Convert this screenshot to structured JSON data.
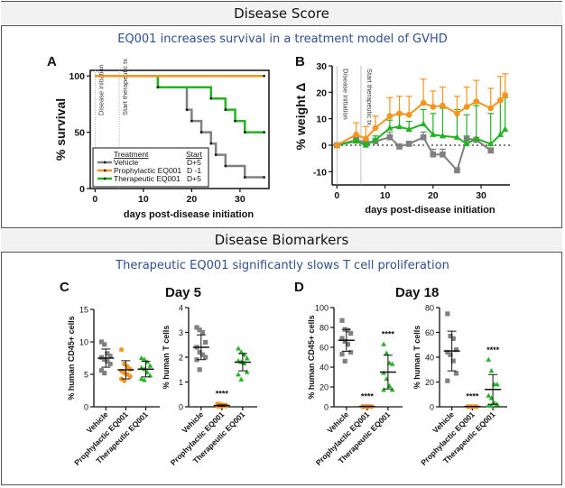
{
  "sections": {
    "score": {
      "title": "Disease Score",
      "subtitle": "EQ001 increases survival in a treatment model of GVHD"
    },
    "biomarkers": {
      "title": "Disease Biomarkers",
      "subtitle": "Therapeutic EQ001 significantly slows T cell proliferation"
    }
  },
  "colors": {
    "vehicle": "#808080",
    "prophylactic": "#f7941d",
    "therapeutic": "#22b322",
    "subtitle": "#2f4f8f"
  },
  "chart_data": [
    {
      "id": "A",
      "panel_label": "A",
      "type": "line",
      "subtype": "kaplan-meier",
      "xlabel": "days post-disease initiation",
      "ylabel": "% survival",
      "xlim": [
        -1,
        36
      ],
      "ylim": [
        0,
        105
      ],
      "xticks": [
        0,
        10,
        20,
        30
      ],
      "yticks": [
        0,
        50,
        100
      ],
      "annotations": [
        "Disease initiation",
        "Start therapeutic tx"
      ],
      "annotation_x": [
        0,
        5
      ],
      "legend": {
        "placement": "bottom-left",
        "header_treatment": "Treatment",
        "header_start": "Start"
      },
      "series": [
        {
          "name": "Vehicle",
          "start": "D+5",
          "key": "vehicle",
          "steps": [
            [
              0,
              100
            ],
            [
              13,
              90
            ],
            [
              19,
              70
            ],
            [
              20,
              60
            ],
            [
              22,
              50
            ],
            [
              24,
              40
            ],
            [
              25,
              30
            ],
            [
              27,
              20
            ],
            [
              31,
              10
            ],
            [
              35,
              10
            ]
          ]
        },
        {
          "name": "Prophylactic EQ001",
          "start": "D -1",
          "key": "prophylactic",
          "steps": [
            [
              0,
              100
            ],
            [
              35,
              100
            ]
          ]
        },
        {
          "name": "Therapeutic EQ001",
          "start": "D+5",
          "key": "therapeutic",
          "steps": [
            [
              0,
              100
            ],
            [
              13,
              90
            ],
            [
              24,
              80
            ],
            [
              27,
              70
            ],
            [
              29,
              60
            ],
            [
              31,
              50
            ],
            [
              35,
              50
            ]
          ]
        }
      ]
    },
    {
      "id": "B",
      "panel_label": "B",
      "type": "line",
      "xlabel": "days post-disease initiation",
      "ylabel": "% weight Δ",
      "xlim": [
        -1,
        36
      ],
      "ylim": [
        -15,
        30
      ],
      "xticks": [
        0,
        10,
        20,
        30
      ],
      "yticks": [
        -10,
        0,
        10,
        20,
        30
      ],
      "annotations": [
        "Disease initiation",
        "Start therapeutic tx"
      ],
      "annotation_x": [
        0,
        5
      ],
      "series": [
        {
          "name": "Vehicle",
          "key": "vehicle",
          "marker": "square",
          "x": [
            0,
            4,
            6,
            8,
            11,
            13,
            15,
            18,
            20,
            22,
            25,
            27,
            29,
            32
          ],
          "y": [
            0,
            2,
            1,
            1.5,
            3,
            -0.5,
            0.5,
            3,
            -3.5,
            -3.5,
            -9.5,
            2.5,
            2,
            -2
          ],
          "err": [
            0,
            1,
            1,
            1,
            2,
            1,
            1,
            2,
            2,
            2,
            1,
            1,
            1,
            1
          ]
        },
        {
          "name": "Therapeutic EQ001",
          "key": "therapeutic",
          "marker": "triangle",
          "x": [
            0,
            4,
            6,
            8,
            11,
            13,
            15,
            18,
            20,
            22,
            25,
            27,
            29,
            32,
            34,
            35
          ],
          "y": [
            0,
            1.5,
            0,
            2,
            6.5,
            7,
            6,
            8,
            4,
            3.5,
            3,
            0.5,
            2.5,
            0.5,
            4,
            6
          ],
          "err": [
            0,
            1,
            1,
            1.5,
            3,
            5,
            3,
            5.5,
            8,
            10.5,
            10.5,
            11,
            12.5,
            11.5,
            13,
            12
          ]
        },
        {
          "name": "Prophylactic EQ001",
          "key": "prophylactic",
          "marker": "circle",
          "x": [
            0,
            4,
            6,
            8,
            11,
            13,
            15,
            18,
            20,
            22,
            25,
            27,
            29,
            32,
            34,
            35
          ],
          "y": [
            0,
            4,
            2.5,
            6.5,
            11,
            12,
            11.5,
            16,
            14.5,
            15,
            12,
            14.5,
            16.5,
            14,
            17,
            19
          ],
          "err": [
            0,
            4.5,
            4.5,
            4.5,
            7,
            6.5,
            7,
            9,
            6,
            7,
            6.5,
            7.5,
            8,
            7.5,
            9,
            8
          ]
        }
      ]
    },
    {
      "id": "C1",
      "panel_label": "C",
      "group_title": "Day 5",
      "type": "scatter",
      "ylabel": "% human CD45+ cells",
      "ylim": [
        0,
        15
      ],
      "yticks": [
        0,
        5,
        10,
        15
      ],
      "categories": [
        "Vehicle",
        "Prophylactic EQ001",
        "Therapeutic EQ001"
      ],
      "groups": [
        {
          "key": "vehicle",
          "marker": "square",
          "mean": 7.5,
          "sd": 1.4,
          "sig": "",
          "values": [
            10,
            9.6,
            8.2,
            7.8,
            7.6,
            7.3,
            7.0,
            6.6,
            5.6,
            5.2
          ]
        },
        {
          "key": "prophylactic",
          "marker": "circle",
          "mean": 5.7,
          "sd": 1.4,
          "sig": "",
          "values": [
            8.8,
            6.6,
            6.2,
            5.8,
            5.5,
            5.2,
            5.0,
            4.7,
            4.3,
            4.0
          ]
        },
        {
          "key": "therapeutic",
          "marker": "triangle",
          "mean": 5.8,
          "sd": 1.2,
          "sig": "",
          "values": [
            7.5,
            7.3,
            6.9,
            6.3,
            6.0,
            5.8,
            5.3,
            4.8,
            4.3,
            4.1
          ]
        }
      ]
    },
    {
      "id": "C2",
      "panel_label": "",
      "group_title": "Day 5",
      "type": "scatter",
      "ylabel": "% human T cells",
      "ylim": [
        0,
        4
      ],
      "yticks": [
        0,
        1,
        2,
        3,
        4
      ],
      "categories": [
        "Vehicle",
        "Prophylactic EQ001",
        "Therapeutic EQ001"
      ],
      "groups": [
        {
          "key": "vehicle",
          "marker": "square",
          "mean": 2.4,
          "sd": 0.5,
          "sig": "",
          "values": [
            3.2,
            3.1,
            3.0,
            2.6,
            2.4,
            2.2,
            2.1,
            2.0,
            1.9,
            1.5
          ]
        },
        {
          "key": "prophylactic",
          "marker": "circle",
          "mean": 0.05,
          "sd": 0.03,
          "sig": "****",
          "values": [
            0.12,
            0.1,
            0.08,
            0.07,
            0.06,
            0.05,
            0.04,
            0.03,
            0.02,
            0.02
          ]
        },
        {
          "key": "therapeutic",
          "marker": "triangle",
          "mean": 1.8,
          "sd": 0.35,
          "sig": "",
          "values": [
            2.35,
            2.2,
            2.1,
            1.95,
            1.85,
            1.8,
            1.75,
            1.4,
            1.3,
            1.1
          ]
        }
      ]
    },
    {
      "id": "D1",
      "panel_label": "D",
      "group_title": "Day 18",
      "type": "scatter",
      "ylabel": "% human CD45+ cells",
      "ylim": [
        0,
        100
      ],
      "yticks": [
        0,
        20,
        40,
        60,
        80,
        100
      ],
      "categories": [
        "Vehicle",
        "Prophylactic EQ001",
        "Therapeutic EQ001"
      ],
      "groups": [
        {
          "key": "vehicle",
          "marker": "square",
          "mean": 67,
          "sd": 11,
          "sig": "",
          "values": [
            87,
            78,
            77,
            74,
            69,
            66,
            63,
            55,
            53,
            46
          ]
        },
        {
          "key": "prophylactic",
          "marker": "circle",
          "mean": 0.3,
          "sd": 0.2,
          "sig": "****",
          "values": [
            0.5,
            0.4,
            0.4,
            0.3,
            0.3,
            0.3,
            0.2,
            0.2,
            0.1,
            0.1
          ]
        },
        {
          "key": "therapeutic",
          "marker": "triangle",
          "mean": 35,
          "sd": 17,
          "sig": "****",
          "values": [
            63,
            54,
            44,
            43,
            34,
            28,
            21,
            17,
            17
          ]
        }
      ]
    },
    {
      "id": "D2",
      "panel_label": "",
      "group_title": "Day 18",
      "type": "scatter",
      "ylabel": "% human T cells",
      "ylim": [
        0,
        80
      ],
      "yticks": [
        0,
        20,
        40,
        60,
        80
      ],
      "categories": [
        "Vehicle",
        "Prophylactic EQ001",
        "Therapeutic EQ001"
      ],
      "groups": [
        {
          "key": "vehicle",
          "marker": "square",
          "mean": 45,
          "sd": 16,
          "sig": "",
          "values": [
            75,
            57,
            55,
            46,
            44,
            42,
            37,
            27,
            21
          ]
        },
        {
          "key": "prophylactic",
          "marker": "circle",
          "mean": 0.2,
          "sd": 0.1,
          "sig": "****",
          "values": [
            0.3,
            0.3,
            0.2,
            0.2,
            0.2,
            0.2,
            0.1,
            0.1,
            0.1
          ]
        },
        {
          "key": "therapeutic",
          "marker": "triangle",
          "mean": 14,
          "sd": 12,
          "sig": "****",
          "values": [
            38,
            29,
            18,
            18,
            9,
            7,
            3,
            2,
            1,
            1
          ]
        }
      ]
    }
  ]
}
